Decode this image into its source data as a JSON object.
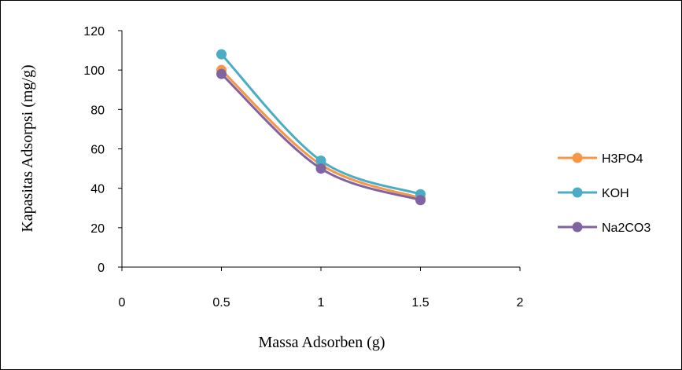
{
  "chart_data": {
    "type": "line",
    "xlabel": "Massa Adsorben (g)",
    "ylabel": "Kapasitas Adsorpsi (mg/g)",
    "xlim": [
      0,
      2
    ],
    "ylim": [
      0,
      120
    ],
    "x_ticks": [
      0,
      0.5,
      1,
      1.5,
      2
    ],
    "y_ticks": [
      0,
      20,
      40,
      60,
      80,
      100,
      120
    ],
    "grid": false,
    "legend_position": "right",
    "smooth": true,
    "x": [
      0.5,
      1,
      1.5
    ],
    "series": [
      {
        "name": "H3PO4",
        "color": "#F79646",
        "values": [
          100,
          52,
          35
        ]
      },
      {
        "name": "KOH",
        "color": "#4BACC6",
        "values": [
          108,
          54,
          37
        ]
      },
      {
        "name": "Na2CO3",
        "color": "#8064A2",
        "values": [
          98,
          50,
          34
        ]
      }
    ]
  }
}
